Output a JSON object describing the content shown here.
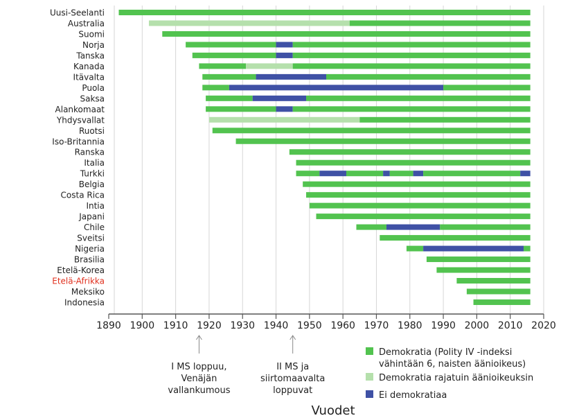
{
  "chart_data": {
    "type": "bar",
    "subtype": "timeline-gantt",
    "xlabel": "Vuodet",
    "xlim": [
      1890,
      2020
    ],
    "xticks": [
      1890,
      1900,
      1910,
      1920,
      1930,
      1940,
      1950,
      1960,
      1970,
      1980,
      1990,
      2000,
      2010,
      2020
    ],
    "grid": "vertical",
    "legend_placement": "bottom-right",
    "colors": {
      "democracy": "#52c34f",
      "limited": "#b5e0ac",
      "none": "#3f51a5",
      "highlight_label": "#e0301e"
    },
    "legend": [
      {
        "key": "democracy",
        "lines": [
          "Demokratia (Polity IV -indeksi",
          "vähintään 6, naisten äänioikeus)"
        ]
      },
      {
        "key": "limited",
        "lines": [
          "Demokratia rajatuin äänioikeuksin"
        ]
      },
      {
        "key": "none",
        "lines": [
          "Ei demokratiaa"
        ]
      }
    ],
    "annotations": [
      {
        "year": 1917,
        "lines": [
          "I MS loppuu,",
          "Venäjän",
          "vallankumous"
        ]
      },
      {
        "year": 1945,
        "lines": [
          "II MS ja",
          "siirtomaavalta",
          "loppuvat"
        ]
      }
    ],
    "countries": [
      {
        "name": "Uusi-Seelanti",
        "segments": [
          [
            1893,
            2016,
            "democracy"
          ]
        ]
      },
      {
        "name": "Australia",
        "segments": [
          [
            1902,
            1962,
            "limited"
          ],
          [
            1962,
            2016,
            "democracy"
          ]
        ]
      },
      {
        "name": "Suomi",
        "segments": [
          [
            1906,
            2016,
            "democracy"
          ]
        ]
      },
      {
        "name": "Norja",
        "segments": [
          [
            1913,
            1940,
            "democracy"
          ],
          [
            1940,
            1945,
            "none"
          ],
          [
            1945,
            2016,
            "democracy"
          ]
        ]
      },
      {
        "name": "Tanska",
        "segments": [
          [
            1915,
            1940,
            "democracy"
          ],
          [
            1940,
            1945,
            "none"
          ],
          [
            1945,
            2016,
            "democracy"
          ]
        ]
      },
      {
        "name": "Kanada",
        "segments": [
          [
            1917,
            1931,
            "democracy"
          ],
          [
            1931,
            1945,
            "limited"
          ],
          [
            1945,
            2016,
            "democracy"
          ]
        ]
      },
      {
        "name": "Itävalta",
        "segments": [
          [
            1918,
            1934,
            "democracy"
          ],
          [
            1934,
            1955,
            "none"
          ],
          [
            1955,
            2016,
            "democracy"
          ]
        ]
      },
      {
        "name": "Puola",
        "segments": [
          [
            1918,
            1926,
            "democracy"
          ],
          [
            1926,
            1990,
            "none"
          ],
          [
            1990,
            2016,
            "democracy"
          ]
        ]
      },
      {
        "name": "Saksa",
        "segments": [
          [
            1919,
            1933,
            "democracy"
          ],
          [
            1933,
            1949,
            "none"
          ],
          [
            1949,
            2016,
            "democracy"
          ]
        ]
      },
      {
        "name": "Alankomaat",
        "segments": [
          [
            1919,
            1940,
            "democracy"
          ],
          [
            1940,
            1945,
            "none"
          ],
          [
            1945,
            2016,
            "democracy"
          ]
        ]
      },
      {
        "name": "Yhdysvallat",
        "segments": [
          [
            1920,
            1965,
            "limited"
          ],
          [
            1965,
            2016,
            "democracy"
          ]
        ]
      },
      {
        "name": "Ruotsi",
        "segments": [
          [
            1921,
            2016,
            "democracy"
          ]
        ]
      },
      {
        "name": "Iso-Britannia",
        "segments": [
          [
            1928,
            2016,
            "democracy"
          ]
        ]
      },
      {
        "name": "Ranska",
        "segments": [
          [
            1944,
            2016,
            "democracy"
          ]
        ]
      },
      {
        "name": "Italia",
        "segments": [
          [
            1946,
            2016,
            "democracy"
          ]
        ]
      },
      {
        "name": "Turkki",
        "segments": [
          [
            1946,
            1953,
            "democracy"
          ],
          [
            1953,
            1961,
            "none"
          ],
          [
            1961,
            1972,
            "democracy"
          ],
          [
            1972,
            1974,
            "none"
          ],
          [
            1974,
            1981,
            "democracy"
          ],
          [
            1981,
            1984,
            "none"
          ],
          [
            1984,
            2013,
            "democracy"
          ],
          [
            2013,
            2016,
            "none"
          ]
        ]
      },
      {
        "name": "Belgia",
        "segments": [
          [
            1948,
            2016,
            "democracy"
          ]
        ]
      },
      {
        "name": "Costa Rica",
        "segments": [
          [
            1949,
            2016,
            "democracy"
          ]
        ]
      },
      {
        "name": "Intia",
        "segments": [
          [
            1950,
            2016,
            "democracy"
          ]
        ]
      },
      {
        "name": "Japani",
        "segments": [
          [
            1952,
            2016,
            "democracy"
          ]
        ]
      },
      {
        "name": "Chile",
        "segments": [
          [
            1964,
            1973,
            "democracy"
          ],
          [
            1973,
            1989,
            "none"
          ],
          [
            1989,
            2016,
            "democracy"
          ]
        ]
      },
      {
        "name": "Sveitsi",
        "segments": [
          [
            1971,
            2016,
            "democracy"
          ]
        ]
      },
      {
        "name": "Nigeria",
        "segments": [
          [
            1979,
            1984,
            "democracy"
          ],
          [
            1984,
            2014,
            "none"
          ],
          [
            2014,
            2016,
            "democracy"
          ]
        ]
      },
      {
        "name": "Brasilia",
        "segments": [
          [
            1985,
            2016,
            "democracy"
          ]
        ]
      },
      {
        "name": "Etelä-Korea",
        "segments": [
          [
            1988,
            2016,
            "democracy"
          ]
        ]
      },
      {
        "name": "Etelä-Afrikka",
        "highlight": true,
        "segments": [
          [
            1994,
            2016,
            "democracy"
          ]
        ]
      },
      {
        "name": "Meksiko",
        "segments": [
          [
            1997,
            2016,
            "democracy"
          ]
        ]
      },
      {
        "name": "Indonesia",
        "segments": [
          [
            1999,
            2016,
            "democracy"
          ]
        ]
      }
    ]
  }
}
